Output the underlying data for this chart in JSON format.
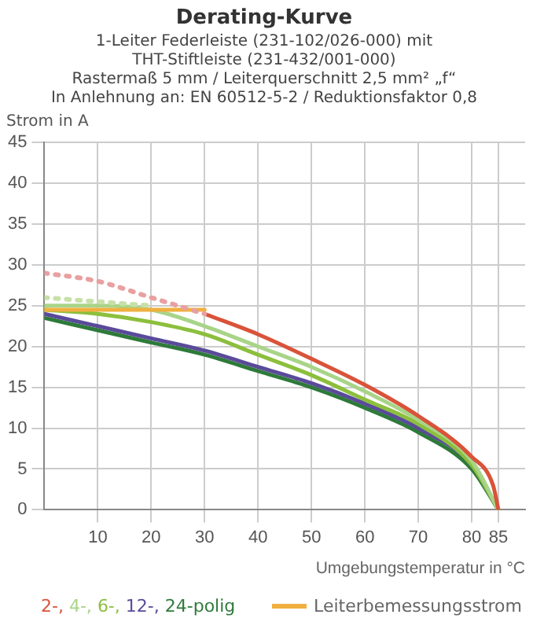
{
  "chart_data": {
    "type": "line",
    "title": "Derating-Kurve",
    "subtitle": "1-Leiter Federleiste (231-102/026-000) mit\nTHT-Stiftleiste (231-432/001-000)\nRastermaß 5 mm / Leiterquerschnitt 2,5 mm² „f“\nIn Anlehnung an: EN 60512-5-2 / Reduktionsfaktor 0,8",
    "ylabel": "Strom in A",
    "xlabel": "Umgebungstemperatur in °C",
    "xlim": [
      0,
      90
    ],
    "xticks": [
      10,
      20,
      30,
      40,
      50,
      60,
      70,
      80,
      85
    ],
    "ylim": [
      0,
      45
    ],
    "yticks": [
      0,
      5,
      10,
      15,
      20,
      25,
      30,
      35,
      40,
      45
    ],
    "grid": true,
    "legend": "bottom",
    "marker": "none",
    "series": [
      {
        "color": "#e9a0a0",
        "line_style": "dotted",
        "x": [
          0,
          10,
          20,
          30
        ],
        "values": [
          29,
          28,
          26,
          24
        ]
      },
      {
        "color": "#c8e0a8",
        "line_style": "dotted",
        "x": [
          0,
          10,
          20
        ],
        "values": [
          26,
          25.5,
          25
        ]
      },
      {
        "name": "Leiterbemessungsstrom",
        "color": "#f0b040",
        "x": [
          0,
          30
        ],
        "values": [
          24.5,
          24.5
        ]
      },
      {
        "name": "2-,",
        "color": "#d9533a",
        "x": [
          30,
          40,
          50,
          60,
          70,
          80,
          84,
          85
        ],
        "values": [
          24,
          21.5,
          18.5,
          15.3,
          11.5,
          6.5,
          3,
          0
        ]
      },
      {
        "name": "4-,",
        "color": "#a8d488",
        "x": [
          0,
          10,
          20,
          30,
          40,
          50,
          60,
          70,
          80,
          85
        ],
        "values": [
          25,
          25,
          24.5,
          22.5,
          20,
          17.5,
          14.5,
          11,
          6,
          0
        ]
      },
      {
        "name": "6-,",
        "color": "#8cbf3c",
        "x": [
          0,
          10,
          20,
          30,
          40,
          50,
          60,
          70,
          80,
          85
        ],
        "values": [
          24.5,
          24,
          23,
          21.5,
          19,
          16.5,
          13.5,
          10.5,
          5.5,
          0
        ]
      },
      {
        "name": "12-,",
        "color": "#5a4a9a",
        "x": [
          0,
          10,
          20,
          30,
          40,
          50,
          60,
          70,
          80,
          85
        ],
        "values": [
          24,
          22.5,
          21,
          19.5,
          17.5,
          15.5,
          13,
          10,
          5.5,
          0
        ]
      },
      {
        "name": "24-polig",
        "color": "#2e7a3a",
        "x": [
          0,
          10,
          20,
          30,
          40,
          50,
          60,
          70,
          80,
          85
        ],
        "values": [
          23.5,
          22,
          20.5,
          19,
          17,
          15,
          12.5,
          9.5,
          5,
          0
        ]
      }
    ]
  }
}
